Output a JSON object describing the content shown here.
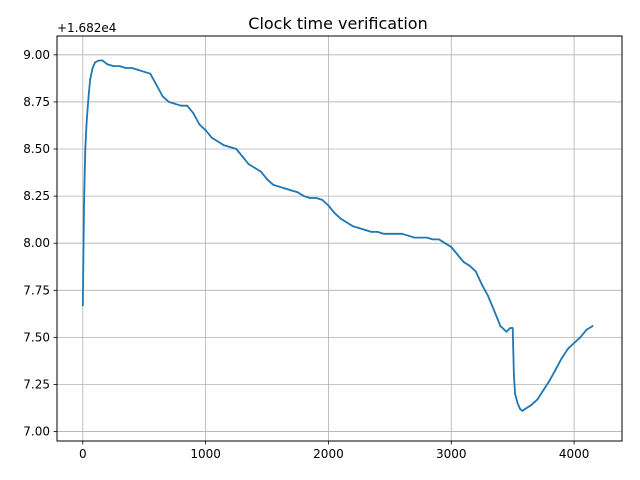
{
  "chart_data": {
    "type": "line",
    "title": "Clock time verification",
    "xlabel": "",
    "ylabel": "",
    "y_offset_label": "+1.682e4",
    "y_offset": 16820,
    "xlim": [
      -210,
      4390
    ],
    "ylim": [
      6.95,
      9.1
    ],
    "x_ticks": [
      0,
      1000,
      2000,
      3000,
      4000
    ],
    "x_tick_labels": [
      "0",
      "1000",
      "2000",
      "3000",
      "4000"
    ],
    "y_ticks": [
      7.0,
      7.25,
      7.5,
      7.75,
      8.0,
      8.25,
      8.5,
      8.75,
      9.0
    ],
    "y_tick_labels": [
      "7.00",
      "7.25",
      "7.50",
      "7.75",
      "8.00",
      "8.25",
      "8.50",
      "8.75",
      "9.00"
    ],
    "grid": true,
    "line_color": "#1f77b4",
    "series": [
      {
        "x": [
          0,
          10,
          20,
          30,
          40,
          50,
          60,
          80,
          100,
          130,
          160,
          200,
          250,
          300,
          350,
          400,
          450,
          500,
          550,
          600,
          650,
          700,
          750,
          800,
          850,
          900,
          950,
          1000,
          1050,
          1100,
          1150,
          1200,
          1250,
          1300,
          1350,
          1400,
          1450,
          1500,
          1550,
          1600,
          1650,
          1700,
          1750,
          1800,
          1850,
          1900,
          1950,
          2000,
          2050,
          2100,
          2150,
          2200,
          2250,
          2300,
          2350,
          2400,
          2450,
          2500,
          2550,
          2600,
          2650,
          2700,
          2750,
          2800,
          2850,
          2900,
          2950,
          3000,
          3050,
          3100,
          3150,
          3200,
          3250,
          3300,
          3350,
          3400,
          3450,
          3480,
          3500,
          3510,
          3520,
          3540,
          3560,
          3580,
          3600,
          3650,
          3700,
          3750,
          3800,
          3850,
          3900,
          3950,
          4000,
          4050,
          4100,
          4150
        ],
        "y": [
          7.67,
          8.2,
          8.5,
          8.63,
          8.72,
          8.8,
          8.87,
          8.93,
          8.96,
          8.97,
          8.97,
          8.95,
          8.94,
          8.94,
          8.93,
          8.93,
          8.92,
          8.91,
          8.9,
          8.84,
          8.78,
          8.75,
          8.74,
          8.73,
          8.73,
          8.69,
          8.63,
          8.6,
          8.56,
          8.54,
          8.52,
          8.51,
          8.5,
          8.46,
          8.42,
          8.4,
          8.38,
          8.34,
          8.31,
          8.3,
          8.29,
          8.28,
          8.27,
          8.25,
          8.24,
          8.24,
          8.23,
          8.2,
          8.16,
          8.13,
          8.11,
          8.09,
          8.08,
          8.07,
          8.06,
          8.06,
          8.05,
          8.05,
          8.05,
          8.05,
          8.04,
          8.03,
          8.03,
          8.03,
          8.02,
          8.02,
          8.0,
          7.98,
          7.94,
          7.9,
          7.88,
          7.85,
          7.78,
          7.72,
          7.64,
          7.56,
          7.53,
          7.55,
          7.55,
          7.3,
          7.2,
          7.15,
          7.12,
          7.11,
          7.12,
          7.14,
          7.17,
          7.22,
          7.27,
          7.33,
          7.39,
          7.44,
          7.47,
          7.5,
          7.54,
          7.56
        ]
      }
    ]
  }
}
